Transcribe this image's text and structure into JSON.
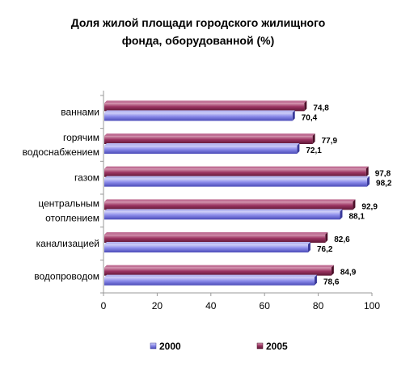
{
  "chart_data": {
    "type": "bar",
    "orientation": "horizontal",
    "title": "Доля жилой площади городского жилищного фонда, оборудованной (%)",
    "title_lines": [
      "Доля жилой площади городского жилищного",
      "фонда, оборудованной (%)"
    ],
    "categories": [
      [
        "ваннами"
      ],
      [
        "горячим",
        "водоснабжением"
      ],
      [
        "газом"
      ],
      [
        "центральным",
        "отоплением"
      ],
      [
        "канализацией"
      ],
      [
        "водопроводом"
      ]
    ],
    "series": [
      {
        "name": "2000",
        "values": [
          70.4,
          72.1,
          98.2,
          88.1,
          76.2,
          78.6
        ],
        "labels": [
          "70,4",
          "72,1",
          "98,2",
          "88,1",
          "76,2",
          "78,6"
        ]
      },
      {
        "name": "2005",
        "values": [
          74.8,
          77.9,
          97.8,
          92.9,
          82.6,
          84.9
        ],
        "labels": [
          "74,8",
          "77,9",
          "97,8",
          "92,9",
          "82,6",
          "84,9"
        ]
      }
    ],
    "xlim": [
      0,
      100
    ],
    "x_ticks": [
      0,
      20,
      40,
      60,
      80,
      100
    ],
    "grid": false,
    "legend_position": "bottom",
    "colors": {
      "2000": "#7B7BE0",
      "2005": "#8E2C55",
      "axis": "#999999",
      "text": "#000000"
    }
  }
}
